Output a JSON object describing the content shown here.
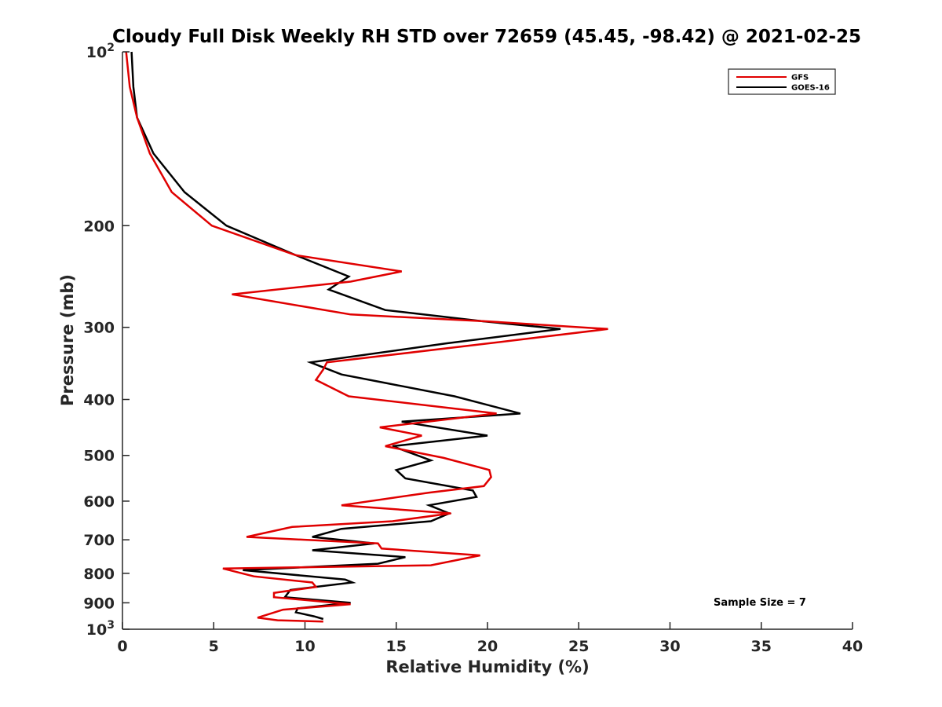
{
  "chart_data": {
    "type": "line",
    "title": "Cloudy Full Disk Weekly RH STD over 72659 (45.45, -98.42) @ 2021-02-25",
    "xlabel": "Relative Humidity (%)",
    "ylabel": "Pressure (mb)",
    "xlim": [
      0,
      40
    ],
    "ylim": [
      100,
      1000
    ],
    "y_scale": "log",
    "y_reversed": true,
    "grid": false,
    "legend_position": "top-right",
    "x_ticks": [
      "0",
      "5",
      "10",
      "15",
      "20",
      "25",
      "30",
      "35",
      "40"
    ],
    "y_ticks": [
      {
        "value": 100,
        "base": "10",
        "exp": "2"
      },
      {
        "value": 200,
        "label": "200"
      },
      {
        "value": 300,
        "label": "300"
      },
      {
        "value": 400,
        "label": "400"
      },
      {
        "value": 500,
        "label": "500"
      },
      {
        "value": 600,
        "label": "600"
      },
      {
        "value": 700,
        "label": "700"
      },
      {
        "value": 800,
        "label": "800"
      },
      {
        "value": 900,
        "label": "900"
      },
      {
        "value": 1000,
        "base": "10",
        "exp": "3"
      }
    ],
    "annotation": "Sample Size = 7",
    "series": [
      {
        "name": "GFS",
        "color": "#e00000",
        "points": [
          [
            0.2,
            100
          ],
          [
            0.4,
            115
          ],
          [
            0.8,
            130
          ],
          [
            1.5,
            150
          ],
          [
            2.7,
            175
          ],
          [
            4.9,
            200
          ],
          [
            9.5,
            225
          ],
          [
            15.3,
            240
          ],
          [
            12.5,
            250
          ],
          [
            6.0,
            263
          ],
          [
            12.5,
            285
          ],
          [
            20.0,
            293
          ],
          [
            26.6,
            302
          ],
          [
            20.0,
            320
          ],
          [
            11.2,
            345
          ],
          [
            11.0,
            355
          ],
          [
            10.6,
            370
          ],
          [
            12.4,
            395
          ],
          [
            20.5,
            423
          ],
          [
            14.1,
            447
          ],
          [
            16.4,
            462
          ],
          [
            14.4,
            482
          ],
          [
            17.6,
            505
          ],
          [
            20.1,
            530
          ],
          [
            20.2,
            545
          ],
          [
            19.8,
            565
          ],
          [
            16.8,
            580
          ],
          [
            12.0,
            610
          ],
          [
            18.0,
            630
          ],
          [
            14.8,
            650
          ],
          [
            9.3,
            665
          ],
          [
            6.8,
            692
          ],
          [
            14.0,
            710
          ],
          [
            14.2,
            725
          ],
          [
            19.6,
            745
          ],
          [
            16.9,
            775
          ],
          [
            5.5,
            785
          ],
          [
            7.2,
            810
          ],
          [
            10.4,
            830
          ],
          [
            10.6,
            845
          ],
          [
            8.3,
            865
          ],
          [
            8.3,
            880
          ],
          [
            12.5,
            905
          ],
          [
            8.8,
            925
          ],
          [
            7.4,
            955
          ],
          [
            8.5,
            965
          ],
          [
            11.0,
            970
          ]
        ]
      },
      {
        "name": "GOES-16",
        "color": "#000000",
        "points": [
          [
            0.5,
            100
          ],
          [
            0.6,
            115
          ],
          [
            0.8,
            130
          ],
          [
            1.7,
            150
          ],
          [
            3.4,
            175
          ],
          [
            5.7,
            200
          ],
          [
            9.5,
            225
          ],
          [
            12.4,
            245
          ],
          [
            11.3,
            258
          ],
          [
            14.4,
            280
          ],
          [
            19.8,
            293
          ],
          [
            24.0,
            302
          ],
          [
            17.7,
            320
          ],
          [
            10.3,
            345
          ],
          [
            12.0,
            362
          ],
          [
            14.5,
            375
          ],
          [
            18.2,
            395
          ],
          [
            21.8,
            423
          ],
          [
            15.3,
            437
          ],
          [
            20.0,
            462
          ],
          [
            14.8,
            482
          ],
          [
            16.9,
            510
          ],
          [
            15.0,
            530
          ],
          [
            15.5,
            548
          ],
          [
            19.2,
            575
          ],
          [
            19.4,
            590
          ],
          [
            16.8,
            610
          ],
          [
            17.9,
            630
          ],
          [
            16.9,
            650
          ],
          [
            12.0,
            670
          ],
          [
            10.4,
            692
          ],
          [
            13.8,
            710
          ],
          [
            10.4,
            730
          ],
          [
            15.5,
            750
          ],
          [
            14.0,
            770
          ],
          [
            6.6,
            790
          ],
          [
            12.2,
            820
          ],
          [
            12.6,
            830
          ],
          [
            9.2,
            855
          ],
          [
            8.9,
            880
          ],
          [
            12.5,
            900
          ],
          [
            9.6,
            920
          ],
          [
            9.5,
            935
          ],
          [
            10.5,
            950
          ],
          [
            11.0,
            960
          ]
        ]
      }
    ]
  }
}
